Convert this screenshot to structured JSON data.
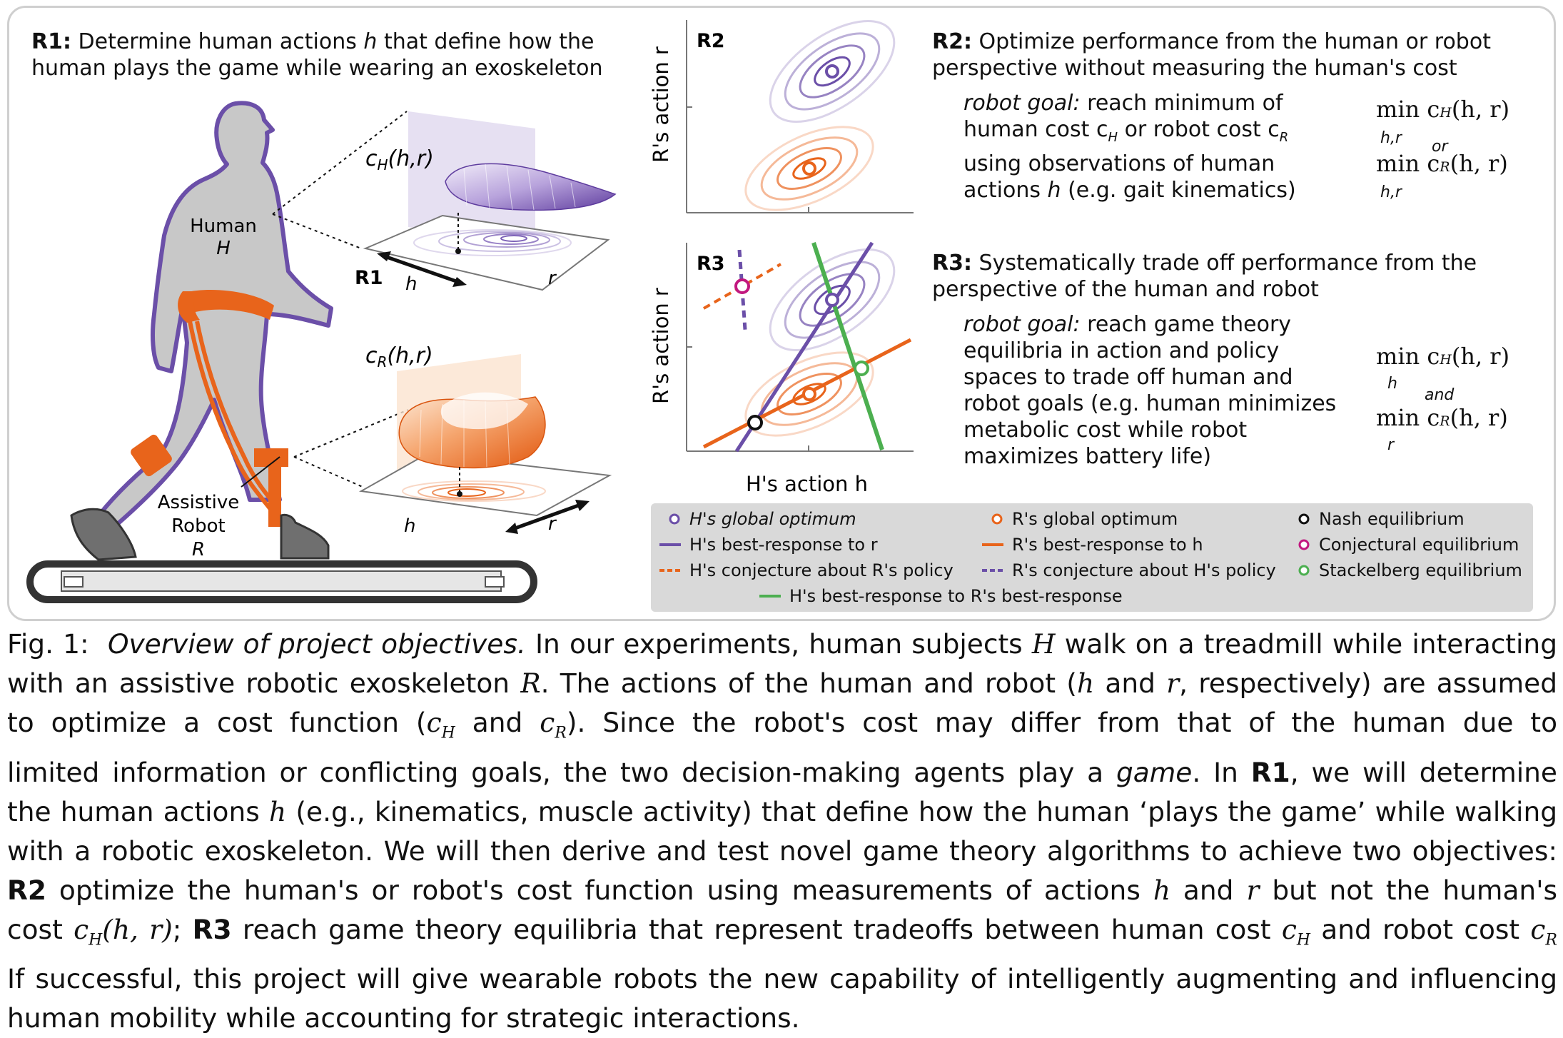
{
  "colors": {
    "human": "#6b4fa8",
    "robot": "#e8641b",
    "green": "#4caf50",
    "magenta": "#c2187f",
    "legend_bg": "#d9d9d9",
    "panel_border": "#cfcfcf"
  },
  "r1": {
    "title_bold": "R1:",
    "title_rest_1": "Determine human actions",
    "title_var": "h",
    "title_rest_2": "that define how the",
    "title_line2": "human plays the game while wearing an exoskeleton",
    "human_label": "Human",
    "human_var": "H",
    "robot_label_1": "Assistive",
    "robot_label_2": "Robot",
    "robot_var": "R",
    "tag": "R1",
    "cost_h": "c",
    "cost_h_sub": "H",
    "cost_args": "(h,r)",
    "cost_r": "c",
    "cost_r_sub": "R",
    "axis_h": "h",
    "axis_r": "r"
  },
  "plots": {
    "r2_tag": "R2",
    "r3_tag": "R3",
    "y_label": "R's action r",
    "x_label": "H's action h"
  },
  "r2": {
    "title_bold": "R2:",
    "title_rest": "Optimize performance from the human or robot",
    "title_line2": "perspective without measuring the human's cost",
    "goal_label": "robot goal:",
    "goal_line1": "reach minimum of",
    "goal_line2": "human cost c",
    "goal_line2_sub": "H",
    "goal_line2_b": "or robot cost c",
    "goal_line2_sub2": "R",
    "goal_line3": "using observations of human",
    "goal_line4a": "actions",
    "goal_line4_var": "h",
    "goal_line4b": "(e.g. gait kinematics)",
    "f1": "min c",
    "f1_sub": "H",
    "f_args": "(h, r)",
    "f_under": "h,r",
    "f_or": "or",
    "f2": "min c",
    "f2_sub": "R"
  },
  "r3": {
    "title_bold": "R3:",
    "title_rest": "Systematically trade off performance from the",
    "title_line2": "perspective of the human and robot",
    "goal_label": "robot goal:",
    "goal_line1": "reach game theory",
    "goal_line2": "equilibria in action and policy",
    "goal_line3": "spaces to trade off human and",
    "goal_line4": "robot goals (e.g. human minimizes",
    "goal_line5": "metabolic cost while robot",
    "goal_line6": "maximizes battery life)",
    "f1": "min c",
    "f1_sub": "H",
    "f1_under": "h",
    "f_args": "(h, r)",
    "f_and": "and",
    "f2": "min c",
    "f2_sub": "R",
    "f2_under": "r"
  },
  "legend": {
    "h_opt": "H's global optimum",
    "h_br": "H's best-response to r",
    "h_conj": "H's conjecture about R's policy",
    "r_opt": "R's global optimum",
    "r_br": "R's best-response to h",
    "r_conj": "R's conjecture about H's policy",
    "nash": "Nash equilibrium",
    "conjectural": "Conjectural equilibrium",
    "stackelberg": "Stackelberg equilibrium",
    "hbrbr": "H's best-response to R's best-response"
  },
  "caption": {
    "l1": "Fig. 1:  Overview of project objectives. In our experiments, human subjects H walk on a treadmill while interacting",
    "l1_a": "Fig. 1:",
    "l1_b": "Overview of project objectives.",
    "l1_c": "In our experiments, human subjects",
    "l1_d": "H",
    "l1_e": "walk on a treadmill while interacting",
    "l2_a": "with an assistive robotic exoskeleton",
    "l2_b": "R",
    "l2_c": ". The actions of the human and robot (",
    "l2_d": "h",
    "l2_e": "and",
    "l2_f": "r",
    "l2_g": ", respectively) are assumed",
    "l3_a": "to optimize a cost function (",
    "l3_b": "c",
    "l3_b_sub": "H",
    "l3_c": "and",
    "l3_d": "c",
    "l3_d_sub": "R",
    "l3_e": ").  Since the robot's cost may differ from that of the human due to",
    "l4_a": "limited information or conflicting goals, the two decision-making agents play a",
    "l4_b": "game",
    "l4_c": ". In",
    "l4_d": "R1",
    "l4_e": ", we will determine",
    "l5_a": "the human actions",
    "l5_b": "h",
    "l5_c": "(e.g., kinematics, muscle activity) that define how the human ‘plays the game’ while walking",
    "l6": "with a robotic exoskeleton. We will then derive and test novel game theory algorithms to achieve two objectives:",
    "l7_a": "R2",
    "l7_b": "optimize the human's or robot's cost function using measurements of actions",
    "l7_c": "h",
    "l7_d": "and",
    "l7_e": "r",
    "l7_f": "but not the human's",
    "l8_a": "cost",
    "l8_b": "c",
    "l8_b_sub": "H",
    "l8_c": "(h, r)",
    "l8_d": ";",
    "l8_e": "R3",
    "l8_f": "reach game theory equilibria that represent tradeoffs between human cost",
    "l8_g": "c",
    "l8_g_sub": "H",
    "l8_h": "and robot cost",
    "l8_i": "c",
    "l8_i_sub": "R",
    "l9": "If successful, this project will give wearable robots the new capability of intelligently augmenting and influencing",
    "l10": "human mobility while accounting for strategic interactions."
  }
}
